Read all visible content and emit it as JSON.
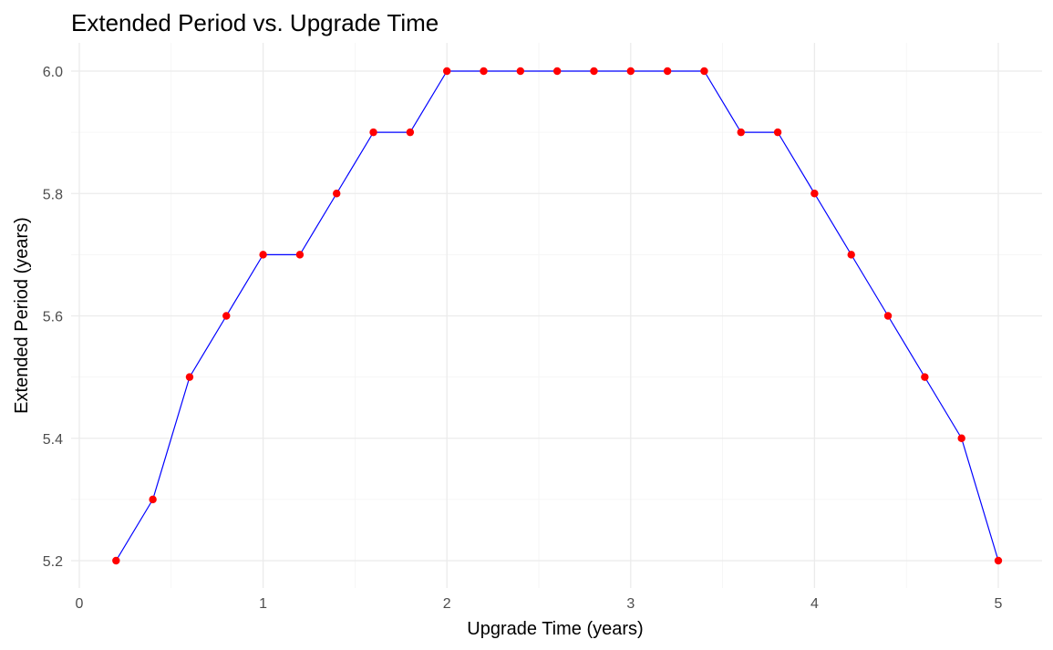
{
  "chart_data": {
    "type": "line",
    "title": "Extended Period vs. Upgrade Time",
    "xlabel": "Upgrade Time (years)",
    "ylabel": "Extended Period (years)",
    "xlim": [
      0,
      5
    ],
    "ylim": [
      5.2,
      6.0
    ],
    "x_ticks": [
      0,
      1,
      2,
      3,
      4,
      5
    ],
    "y_ticks": [
      5.2,
      5.4,
      5.6,
      5.8,
      6.0
    ],
    "x_tick_labels": [
      "0",
      "1",
      "2",
      "3",
      "4",
      "5"
    ],
    "y_tick_labels": [
      "5.2",
      "5.4",
      "5.6",
      "5.8",
      "6.0"
    ],
    "grid": true,
    "series": [
      {
        "name": "Extended Period",
        "line_color": "#0000ff",
        "point_color": "#ff0000",
        "x": [
          0.2,
          0.4,
          0.6,
          0.8,
          1.0,
          1.2,
          1.4,
          1.6,
          1.8,
          2.0,
          2.2,
          2.4,
          2.6,
          2.8,
          3.0,
          3.2,
          3.4,
          3.6,
          3.8,
          4.0,
          4.2,
          4.4,
          4.6,
          4.8,
          5.0
        ],
        "y": [
          5.2,
          5.3,
          5.5,
          5.6,
          5.7,
          5.7,
          5.8,
          5.9,
          5.9,
          6.0,
          6.0,
          6.0,
          6.0,
          6.0,
          6.0,
          6.0,
          6.0,
          5.9,
          5.9,
          5.8,
          5.7,
          5.6,
          5.5,
          5.4,
          5.2
        ]
      }
    ]
  }
}
